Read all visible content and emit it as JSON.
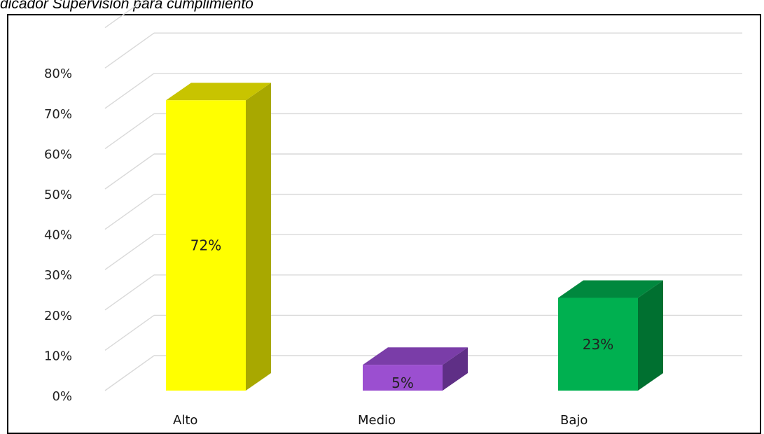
{
  "caption": "dicador Supervisión para cumplimiento",
  "colors": {
    "grid": "#d9d9d9",
    "alto_front": "#ffff00",
    "alto_side": "#a8a800",
    "alto_top": "#c8c400",
    "medio_front": "#9b4fd0",
    "medio_side": "#5f2f86",
    "medio_top": "#7a3da8",
    "bajo_front": "#00b050",
    "bajo_side": "#007030",
    "bajo_top": "#00883e"
  },
  "chart_data": {
    "type": "bar",
    "categories": [
      "Alto",
      "Medio",
      "Bajo"
    ],
    "values": [
      72,
      5,
      23
    ],
    "data_labels": [
      "72%",
      "5%",
      "23%"
    ],
    "ytick_labels": [
      "0%",
      "10%",
      "20%",
      "30%",
      "40%",
      "50%",
      "60%",
      "70%",
      "80%"
    ],
    "ylim": [
      0,
      80
    ],
    "unit": "%",
    "grid": true,
    "style": "3d-column"
  }
}
